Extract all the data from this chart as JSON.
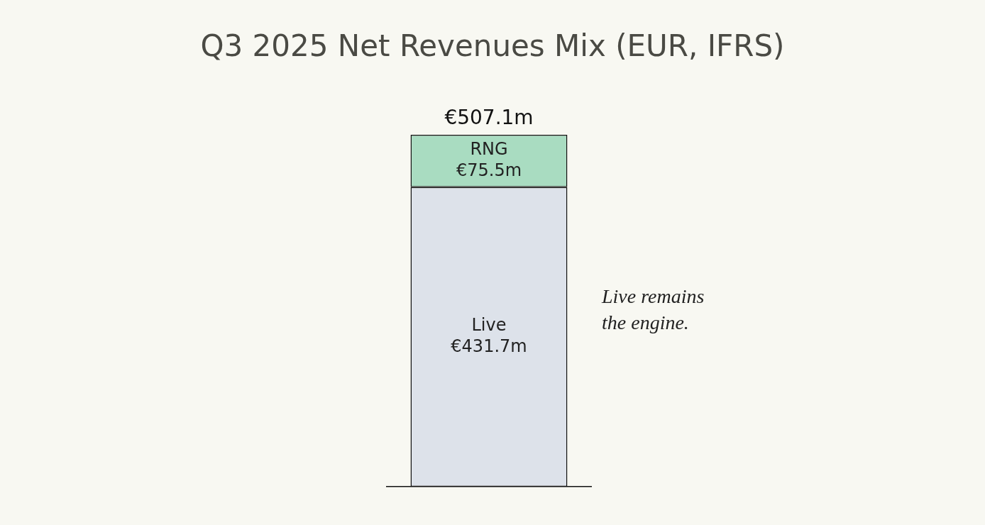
{
  "chart_data": {
    "type": "bar",
    "title": "Q3 2025 Net Revenues Mix (EUR, IFRS)",
    "categories": [
      null
    ],
    "stacked": true,
    "series": [
      {
        "name": "Live",
        "color": "#dde2ea",
        "values": [
          431.7
        ],
        "value_labels": [
          "€431.7m"
        ]
      },
      {
        "name": "RNG",
        "color": "#a9dcc1",
        "values": [
          75.5
        ],
        "value_labels": [
          "€75.5m"
        ]
      }
    ],
    "totals": [
      "€507.1m"
    ],
    "annotations": [
      "Live remains the engine."
    ],
    "grid": false,
    "legend": false
  }
}
